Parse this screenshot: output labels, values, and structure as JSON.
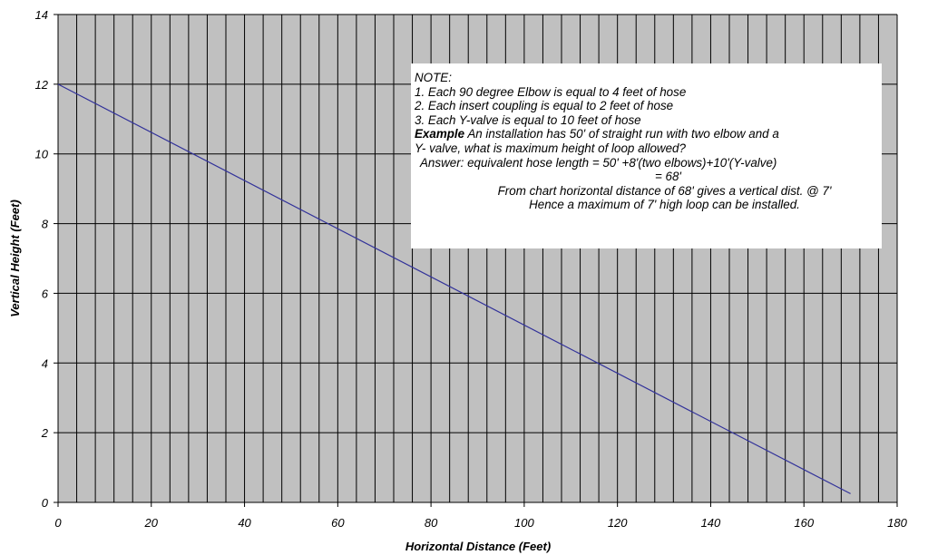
{
  "chart_data": {
    "type": "line",
    "title": "",
    "xlabel": "Horizontal Distance (Feet)",
    "ylabel": "Vertical Height (Feet)",
    "xlim": [
      0,
      180
    ],
    "ylim": [
      0,
      14
    ],
    "x_ticks": [
      "0",
      "20",
      "40",
      "60",
      "80",
      "100",
      "120",
      "140",
      "160",
      "180"
    ],
    "y_ticks": [
      "0",
      "2",
      "4",
      "6",
      "8",
      "10",
      "12",
      "14"
    ],
    "grid": true,
    "plot_background": "#c0c0c0",
    "series": [
      {
        "color": "#33339a",
        "x": [
          0,
          170
        ],
        "y": [
          12,
          0.25
        ]
      }
    ]
  },
  "note": {
    "title": "NOTE:",
    "item1": "1. Each 90 degree Elbow is equal to 4 feet of hose",
    "item2": "2. Each insert coupling is equal to 2 feet of hose",
    "item3": "3. Each Y-valve is equal to 10 feet of hose",
    "example_label": "Example",
    "example_text": " An installation has 50' of straight run with two elbow and a",
    "example_text2": "Y- valve, what is maximum height of loop allowed?",
    "answer_line1": "Answer: equivalent hose length = 50' +8'(two elbows)+10'(Y-valve)",
    "answer_line2": "= 68'",
    "answer_line3": "From chart horizontal distance of 68' gives a vertical dist. @ 7'",
    "answer_line4": "Hence a maximum of 7' high loop can be installed."
  }
}
